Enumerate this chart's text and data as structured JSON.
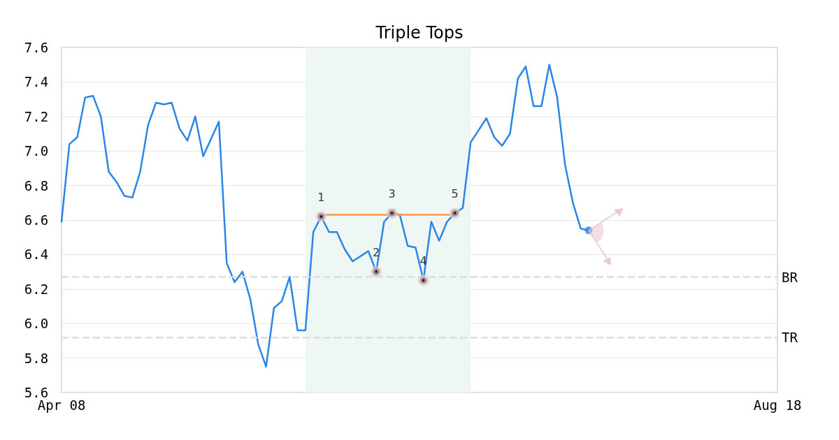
{
  "chart_data": {
    "type": "line",
    "title": "Triple Tops",
    "categories": [
      "Apr 08",
      null,
      null,
      null,
      null,
      null,
      null,
      null,
      null,
      null,
      null,
      null,
      null,
      null,
      null,
      null,
      null,
      null,
      null,
      null,
      null,
      null,
      null,
      null,
      null,
      null,
      null,
      null,
      null,
      null,
      null,
      null,
      null,
      null,
      null,
      null,
      null,
      null,
      null,
      null,
      null,
      null,
      null,
      null,
      null,
      null,
      null,
      null,
      null,
      null,
      null,
      null,
      null,
      null,
      null,
      null,
      null,
      null,
      null,
      null,
      null,
      null,
      null,
      null,
      null,
      null,
      null,
      null,
      null,
      null,
      null,
      null,
      null,
      null,
      null,
      null,
      null,
      null,
      null,
      null,
      null,
      null,
      null,
      null,
      null,
      null,
      null,
      null,
      null,
      null,
      null,
      "Aug 18"
    ],
    "series": [
      {
        "color": "#2a85e8",
        "values": [
          6.59,
          7.04,
          7.08,
          7.31,
          7.32,
          7.2,
          6.88,
          6.82,
          6.74,
          6.73,
          6.88,
          7.15,
          7.28,
          7.27,
          7.28,
          7.13,
          7.06,
          7.2,
          6.97,
          7.07,
          7.17,
          6.35,
          6.24,
          6.3,
          6.14,
          5.88,
          5.75,
          6.09,
          6.13,
          6.27,
          5.96,
          5.96,
          6.53,
          6.62,
          6.53,
          6.53,
          6.43,
          6.36,
          6.39,
          6.42,
          6.3,
          6.59,
          6.64,
          6.63,
          6.45,
          6.44,
          6.25,
          6.59,
          6.48,
          6.59,
          6.64,
          6.67,
          7.05,
          7.12,
          7.19,
          7.08,
          7.03,
          7.1,
          7.42,
          7.49,
          7.26,
          7.26,
          7.5,
          7.31,
          6.92,
          6.7,
          6.55,
          6.54,
          null,
          null,
          null,
          null,
          null,
          null,
          null,
          null,
          null,
          null,
          null,
          null,
          null,
          null,
          null,
          null,
          null,
          null,
          null,
          null,
          null,
          null,
          null,
          null
        ]
      },
      {
        "type": "line",
        "color": "#f5994a",
        "values": [
          null,
          null,
          null,
          null,
          null,
          null,
          null,
          null,
          null,
          null,
          null,
          null,
          null,
          null,
          null,
          null,
          null,
          null,
          null,
          null,
          null,
          null,
          null,
          null,
          null,
          null,
          null,
          null,
          null,
          null,
          null,
          null,
          null,
          6.63,
          6.63,
          6.63,
          6.63,
          6.63,
          6.63,
          6.63,
          6.63,
          6.63,
          6.63,
          6.63,
          6.63,
          6.63,
          6.63,
          6.63,
          6.63,
          6.63,
          6.63,
          null,
          null,
          null,
          null,
          null,
          null,
          null,
          null,
          null,
          null,
          null,
          null,
          null,
          null,
          null,
          null,
          null,
          null,
          null,
          null,
          null,
          null,
          null,
          null,
          null,
          null,
          null,
          null,
          null,
          null,
          null,
          null,
          null,
          null,
          null,
          null,
          null,
          null,
          null,
          null,
          null
        ]
      },
      {
        "type": "scatter",
        "color": "#000000",
        "values": [
          null,
          null,
          null,
          null,
          null,
          null,
          null,
          null,
          null,
          null,
          null,
          null,
          null,
          null,
          null,
          null,
          null,
          null,
          null,
          null,
          null,
          null,
          null,
          null,
          null,
          null,
          null,
          null,
          null,
          null,
          null,
          null,
          null,
          6.62,
          null,
          null,
          null,
          null,
          null,
          null,
          6.3,
          null,
          6.64,
          null,
          null,
          null,
          6.25,
          null,
          null,
          null,
          6.64,
          null,
          null,
          null,
          null,
          null,
          null,
          null,
          null,
          null,
          null,
          null,
          null,
          null,
          null,
          null,
          null,
          null,
          null,
          null,
          null,
          null,
          null,
          null,
          null,
          null,
          null,
          null,
          null,
          null,
          null,
          null,
          null,
          null,
          null,
          null,
          null,
          null,
          null,
          null,
          null,
          null
        ]
      },
      {
        "type": "scatter",
        "color": "#2a85e8",
        "values": [
          null,
          null,
          null,
          null,
          null,
          null,
          null,
          null,
          null,
          null,
          null,
          null,
          null,
          null,
          null,
          null,
          null,
          null,
          null,
          null,
          null,
          null,
          null,
          null,
          null,
          null,
          null,
          null,
          null,
          null,
          null,
          null,
          null,
          null,
          null,
          null,
          null,
          null,
          null,
          null,
          null,
          null,
          null,
          null,
          null,
          null,
          null,
          null,
          null,
          null,
          null,
          null,
          null,
          null,
          null,
          null,
          null,
          null,
          null,
          null,
          null,
          null,
          null,
          null,
          null,
          null,
          null,
          6.54,
          null,
          null,
          null,
          null,
          null,
          null,
          null,
          null,
          null,
          null,
          null,
          null,
          null,
          null,
          null,
          null,
          null,
          null,
          null,
          null,
          null,
          null,
          null,
          null
        ]
      }
    ],
    "annotations": [
      "1",
      "2",
      "3",
      "4",
      "5"
    ],
    "ylim": [
      5.6,
      7.6
    ],
    "yticks": [
      5.6,
      5.8,
      {
        "value": 6,
        "label": "6.0"
      },
      6.2,
      6.4,
      6.6,
      6.8,
      {
        "value": 7,
        "label": "7.0"
      },
      7.2,
      7.4,
      7.6
    ],
    "grid": "y",
    "line_style": "solid",
    "ref_lines": [
      {
        "axis": "y",
        "value": 6.27,
        "label": "BR",
        "color": "#dddddd",
        "line_style": "dashed"
      },
      {
        "axis": "y",
        "value": 5.92,
        "label": "TR",
        "color": "#dddddd",
        "line_style": "dashed"
      }
    ]
  }
}
